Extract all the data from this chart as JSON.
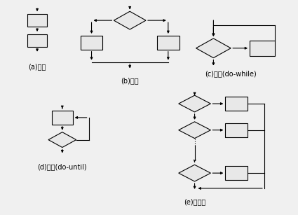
{
  "bg_color": "#f0f0f0",
  "line_color": "#000000",
  "box_color": "#e8e8e8",
  "box_edge": "#000000",
  "diamond_color": "#e8e8e8",
  "labels": {
    "a": "(a)顺序",
    "b": "(b)分支",
    "c": "(c)重复(do-while)",
    "d": "(d)重复(do-until)",
    "e": "(e)多分支"
  },
  "label_fontsize": 7.0
}
